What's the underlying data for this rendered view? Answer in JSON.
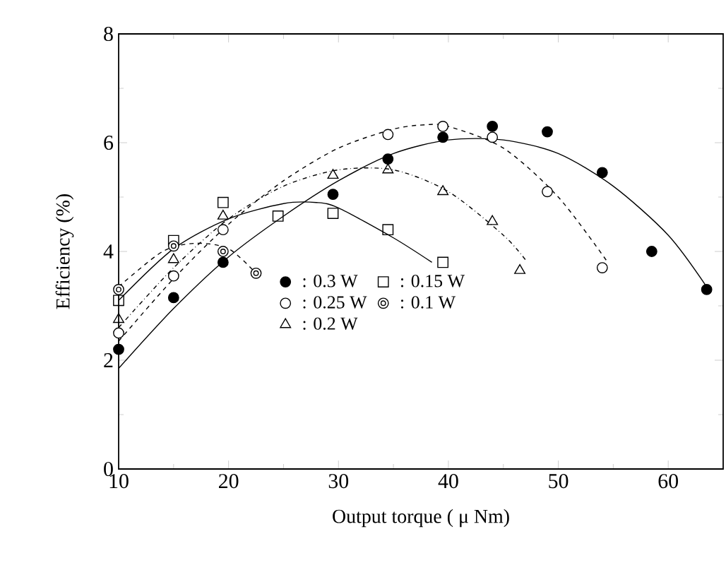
{
  "chart_data": {
    "type": "scatter",
    "xlabel": "Output torque ( μ Nm)",
    "ylabel": "Efficiency (%)",
    "xlim": [
      10,
      65
    ],
    "ylim": [
      0,
      8
    ],
    "xticks": [
      10,
      20,
      30,
      40,
      50,
      60
    ],
    "yticks": [
      0,
      2,
      4,
      6,
      8
    ],
    "grid": false,
    "legend": "bottom",
    "series": [
      {
        "name": ": 0.3 W",
        "marker": "circle",
        "color": "#000000",
        "x": [
          10,
          15,
          19.5,
          29.5,
          34.5,
          39.5,
          44,
          49,
          54,
          58.5,
          63.5
        ],
        "values": [
          2.2,
          3.15,
          3.8,
          5.05,
          5.7,
          6.1,
          6.3,
          6.2,
          5.45,
          4.0,
          3.3
        ]
      },
      {
        "name": ": 0.25 W",
        "marker": "circle-open",
        "color": "#000000",
        "x": [
          10,
          15,
          19.5,
          34.5,
          39.5,
          44,
          49,
          54
        ],
        "values": [
          2.5,
          3.55,
          4.4,
          6.15,
          6.3,
          6.1,
          5.1,
          3.7
        ]
      },
      {
        "name": ": 0.2 W",
        "marker": "triangle-open",
        "color": "#000000",
        "x": [
          10,
          15,
          19.5,
          29.5,
          34.5,
          39.5,
          44,
          46.5
        ],
        "values": [
          2.75,
          3.85,
          4.65,
          5.4,
          5.5,
          5.1,
          4.55,
          3.65
        ]
      },
      {
        "name": ": 0.15 W",
        "marker": "square-open",
        "color": "#000000",
        "x": [
          10,
          15,
          19.5,
          24.5,
          29.5,
          34.5,
          39.5
        ],
        "values": [
          3.1,
          4.2,
          4.9,
          4.65,
          4.7,
          4.4,
          3.8
        ]
      },
      {
        "name": ": 0.1 W",
        "marker": "circle-double",
        "color": "#000000",
        "x": [
          10,
          15,
          19.5,
          22.5
        ],
        "values": [
          3.3,
          4.1,
          4.0,
          3.6
        ]
      },
      {
        "type": "line",
        "marker": "none",
        "line_style": "solid",
        "color": "#000000",
        "x": [
          10,
          15,
          20,
          25,
          30,
          35,
          40,
          45,
          50,
          55,
          60,
          63.5
        ],
        "values": [
          1.85,
          2.95,
          3.9,
          4.65,
          5.3,
          5.8,
          6.05,
          6.05,
          5.8,
          5.2,
          4.3,
          3.35
        ]
      },
      {
        "type": "line",
        "marker": "none",
        "line_style": "dashed",
        "color": "#000000",
        "x": [
          10,
          15,
          20,
          25,
          30,
          35,
          38,
          40,
          45,
          50,
          54.5
        ],
        "values": [
          2.35,
          3.5,
          4.5,
          5.3,
          5.9,
          6.25,
          6.33,
          6.3,
          5.9,
          5.0,
          3.8
        ]
      },
      {
        "type": "line",
        "marker": "none",
        "line_style": "dashdot",
        "color": "#000000",
        "x": [
          10,
          15,
          20,
          25,
          30,
          35,
          40,
          45,
          47
        ],
        "values": [
          2.6,
          3.7,
          4.6,
          5.2,
          5.5,
          5.5,
          5.1,
          4.3,
          3.85
        ]
      },
      {
        "type": "line",
        "marker": "none",
        "line_style": "solid",
        "color": "#000000",
        "x": [
          10,
          15,
          20,
          25,
          28,
          30,
          35,
          38.5
        ],
        "values": [
          3.1,
          4.05,
          4.6,
          4.88,
          4.9,
          4.8,
          4.25,
          3.8
        ]
      },
      {
        "type": "line",
        "marker": "none",
        "line_style": "dashed",
        "color": "#000000",
        "x": [
          10,
          14,
          17,
          20,
          22.5
        ],
        "values": [
          3.35,
          4.0,
          4.15,
          4.05,
          3.6
        ]
      }
    ]
  }
}
